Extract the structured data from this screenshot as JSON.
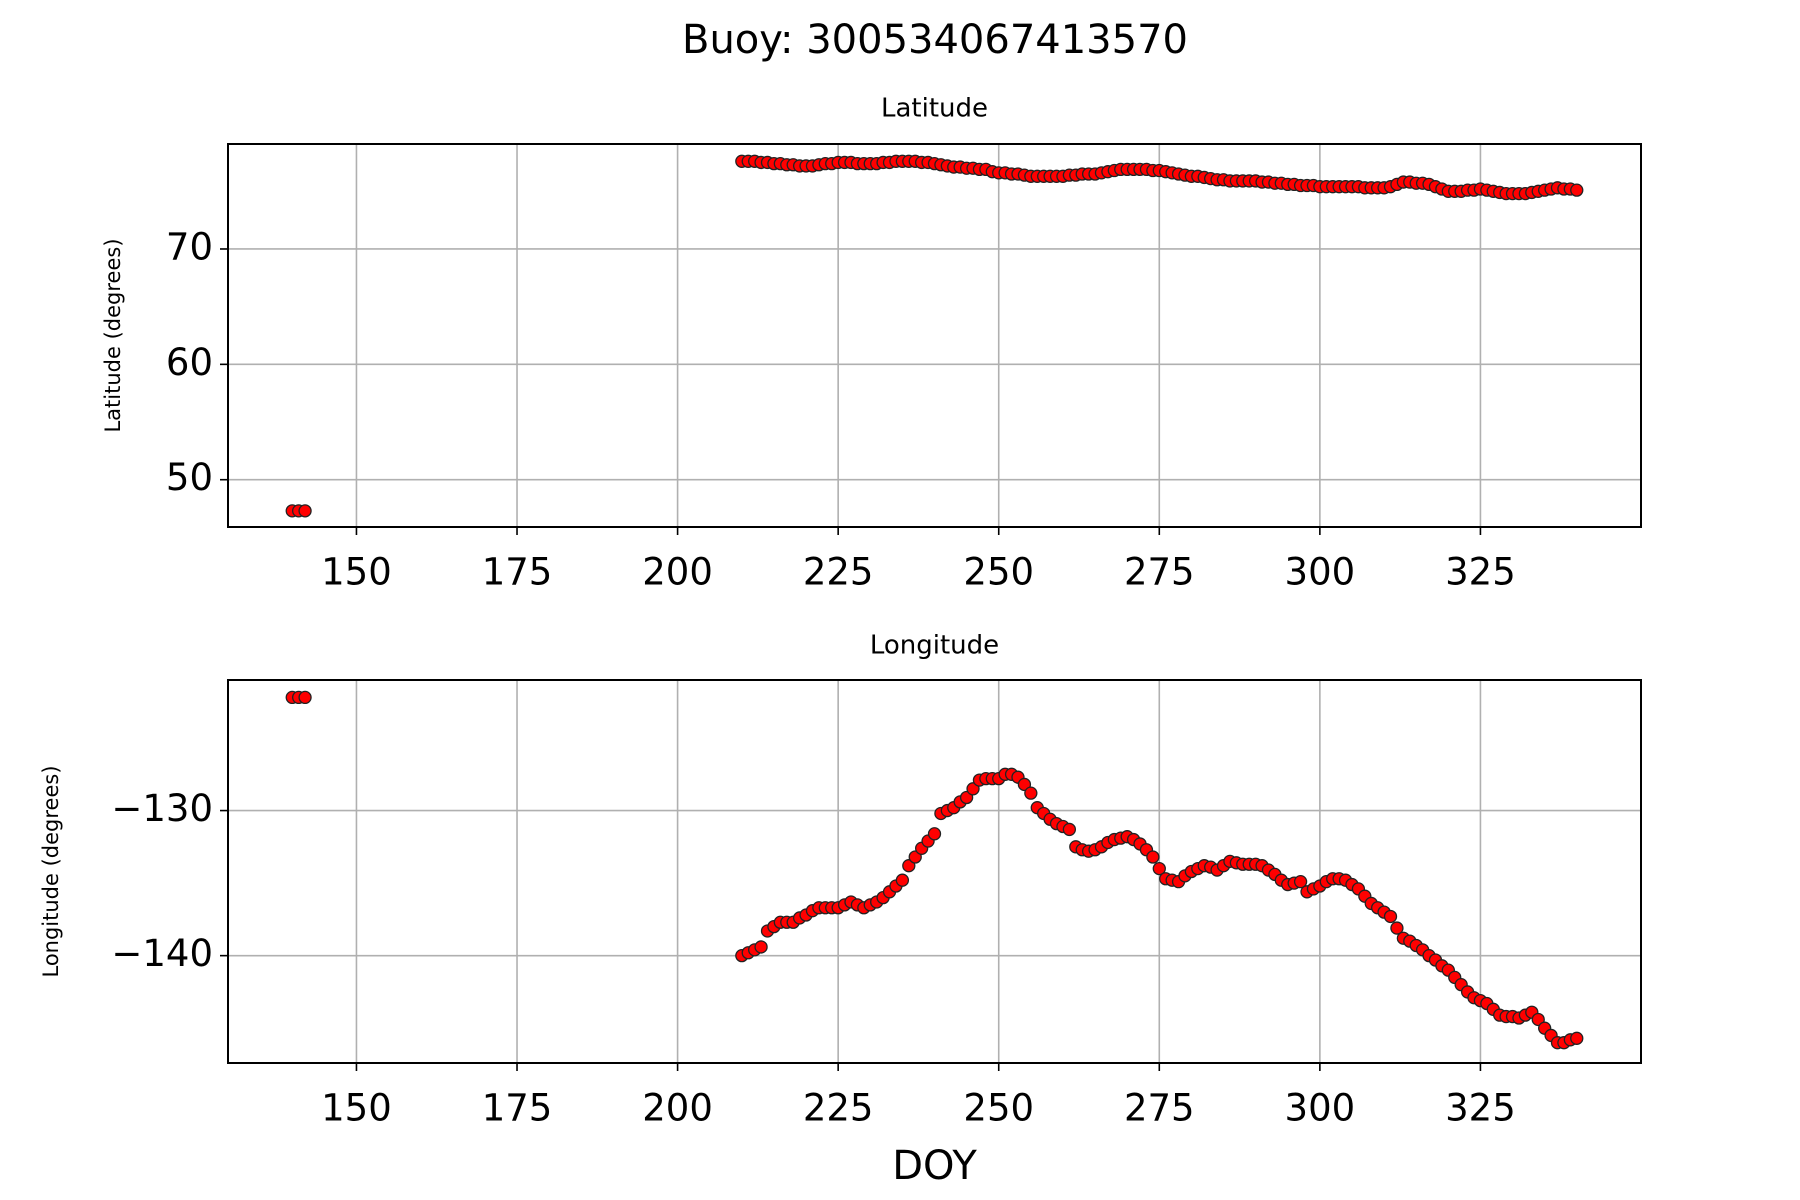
{
  "suptitle": "Buoy: 300534067413570",
  "chart_data": [
    {
      "type": "scatter",
      "title": "Latitude",
      "y_label": "Latitude (degrees)",
      "color": "#ff0000",
      "edgecolor": "#222222",
      "grid": true,
      "xlim": [
        130,
        350
      ],
      "xticks": [
        150,
        175,
        200,
        225,
        250,
        275,
        300,
        325
      ],
      "ylim": [
        45.9,
        79.1
      ],
      "yticks": [
        50,
        60,
        70
      ],
      "x": [
        140,
        141,
        142,
        210,
        211,
        212,
        213,
        214,
        215,
        216,
        217,
        218,
        219,
        220,
        221,
        222,
        223,
        224,
        225,
        226,
        227,
        228,
        229,
        230,
        231,
        232,
        233,
        234,
        235,
        236,
        237,
        238,
        239,
        240,
        241,
        242,
        243,
        244,
        245,
        246,
        247,
        248,
        249,
        250,
        251,
        252,
        253,
        254,
        255,
        256,
        257,
        258,
        259,
        260,
        261,
        262,
        263,
        264,
        265,
        266,
        267,
        268,
        269,
        270,
        271,
        272,
        273,
        274,
        275,
        276,
        277,
        278,
        279,
        280,
        281,
        282,
        283,
        284,
        285,
        286,
        287,
        288,
        289,
        290,
        291,
        292,
        293,
        294,
        295,
        296,
        297,
        298,
        299,
        300,
        301,
        302,
        303,
        304,
        305,
        306,
        307,
        308,
        309,
        310,
        311,
        312,
        313,
        314,
        315,
        316,
        317,
        318,
        319,
        320,
        321,
        322,
        323,
        324,
        325,
        326,
        327,
        328,
        329,
        330,
        331,
        332,
        333,
        334,
        335,
        336,
        337,
        338,
        339,
        340
      ],
      "values": [
        47.3,
        47.3,
        47.3,
        77.6,
        77.6,
        77.6,
        77.5,
        77.5,
        77.4,
        77.4,
        77.3,
        77.3,
        77.2,
        77.2,
        77.2,
        77.3,
        77.4,
        77.4,
        77.5,
        77.5,
        77.5,
        77.4,
        77.4,
        77.4,
        77.4,
        77.5,
        77.5,
        77.6,
        77.6,
        77.6,
        77.6,
        77.5,
        77.5,
        77.4,
        77.3,
        77.2,
        77.1,
        77.1,
        77.0,
        77.0,
        76.9,
        76.9,
        76.7,
        76.6,
        76.6,
        76.5,
        76.5,
        76.4,
        76.3,
        76.3,
        76.3,
        76.3,
        76.3,
        76.3,
        76.4,
        76.4,
        76.5,
        76.5,
        76.5,
        76.6,
        76.7,
        76.8,
        76.9,
        76.9,
        76.9,
        76.9,
        76.9,
        76.8,
        76.8,
        76.7,
        76.6,
        76.5,
        76.4,
        76.3,
        76.3,
        76.2,
        76.1,
        76.0,
        76.0,
        75.9,
        75.9,
        75.9,
        75.9,
        75.9,
        75.8,
        75.8,
        75.7,
        75.7,
        75.6,
        75.6,
        75.5,
        75.5,
        75.5,
        75.4,
        75.4,
        75.4,
        75.4,
        75.4,
        75.4,
        75.4,
        75.3,
        75.3,
        75.3,
        75.3,
        75.4,
        75.6,
        75.8,
        75.8,
        75.7,
        75.7,
        75.6,
        75.4,
        75.2,
        75.0,
        75.0,
        75.0,
        75.1,
        75.1,
        75.2,
        75.1,
        75.0,
        74.9,
        74.8,
        74.8,
        74.8,
        74.8,
        74.9,
        75.0,
        75.1,
        75.2,
        75.3,
        75.2,
        75.2,
        75.1
      ]
    },
    {
      "type": "scatter",
      "title": "Longitude",
      "y_label": "Longitude (degrees)",
      "x_label": "DOY",
      "color": "#ff0000",
      "edgecolor": "#222222",
      "grid": true,
      "xlim": [
        130,
        350
      ],
      "xticks": [
        150,
        175,
        200,
        225,
        250,
        275,
        300,
        325
      ],
      "ylim": [
        -147.4,
        -121.0
      ],
      "yticks": [
        {
          "value": -140,
          "label": "−140"
        },
        {
          "value": -130,
          "label": "−130"
        }
      ],
      "x": [
        140,
        141,
        142,
        210,
        211,
        212,
        213,
        214,
        215,
        216,
        217,
        218,
        219,
        220,
        221,
        222,
        223,
        224,
        225,
        226,
        227,
        228,
        229,
        230,
        231,
        232,
        233,
        234,
        235,
        236,
        237,
        238,
        239,
        240,
        241,
        242,
        243,
        244,
        245,
        246,
        247,
        248,
        249,
        250,
        251,
        252,
        253,
        254,
        255,
        256,
        257,
        258,
        259,
        260,
        261,
        262,
        263,
        264,
        265,
        266,
        267,
        268,
        269,
        270,
        271,
        272,
        273,
        274,
        275,
        276,
        277,
        278,
        279,
        280,
        281,
        282,
        283,
        284,
        285,
        286,
        287,
        288,
        289,
        290,
        291,
        292,
        293,
        294,
        295,
        296,
        297,
        298,
        299,
        300,
        301,
        302,
        303,
        304,
        305,
        306,
        307,
        308,
        309,
        310,
        311,
        312,
        313,
        314,
        315,
        316,
        317,
        318,
        319,
        320,
        321,
        322,
        323,
        324,
        325,
        326,
        327,
        328,
        329,
        330,
        331,
        332,
        333,
        334,
        335,
        336,
        337,
        338,
        339,
        340
      ],
      "values": [
        -122.2,
        -122.2,
        -122.2,
        -140.0,
        -139.8,
        -139.6,
        -139.4,
        -138.3,
        -138.0,
        -137.7,
        -137.7,
        -137.7,
        -137.4,
        -137.2,
        -136.9,
        -136.7,
        -136.7,
        -136.7,
        -136.7,
        -136.5,
        -136.3,
        -136.5,
        -136.7,
        -136.5,
        -136.3,
        -136.0,
        -135.6,
        -135.2,
        -134.8,
        -133.8,
        -133.2,
        -132.6,
        -132.1,
        -131.6,
        -130.2,
        -130.0,
        -129.8,
        -129.4,
        -129.1,
        -128.5,
        -127.9,
        -127.8,
        -127.8,
        -127.8,
        -127.5,
        -127.5,
        -127.7,
        -128.2,
        -128.8,
        -129.8,
        -130.2,
        -130.6,
        -130.9,
        -131.1,
        -131.3,
        -132.5,
        -132.7,
        -132.8,
        -132.7,
        -132.5,
        -132.2,
        -132.0,
        -131.9,
        -131.8,
        -132.0,
        -132.3,
        -132.7,
        -133.2,
        -134.0,
        -134.7,
        -134.8,
        -134.9,
        -134.5,
        -134.2,
        -134.0,
        -133.8,
        -133.9,
        -134.1,
        -133.8,
        -133.5,
        -133.6,
        -133.7,
        -133.7,
        -133.7,
        -133.8,
        -134.1,
        -134.4,
        -134.8,
        -135.1,
        -135.0,
        -134.9,
        -135.6,
        -135.4,
        -135.2,
        -134.9,
        -134.7,
        -134.7,
        -134.8,
        -135.1,
        -135.4,
        -135.9,
        -136.4,
        -136.7,
        -137.0,
        -137.3,
        -138.1,
        -138.8,
        -139.0,
        -139.3,
        -139.6,
        -140.0,
        -140.3,
        -140.7,
        -141.0,
        -141.5,
        -142.0,
        -142.5,
        -142.9,
        -143.1,
        -143.3,
        -143.7,
        -144.1,
        -144.2,
        -144.2,
        -144.3,
        -144.1,
        -143.9,
        -144.4,
        -145.0,
        -145.5,
        -146.0,
        -146.0,
        -145.8,
        -145.7
      ]
    }
  ]
}
